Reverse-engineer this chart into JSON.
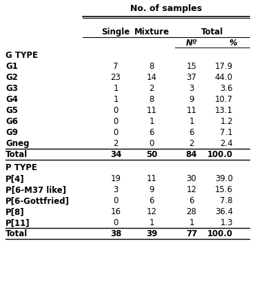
{
  "title": "No. of samples",
  "gtype_label": "G TYPE",
  "ptype_label": "P TYPE",
  "gtype_rows": [
    [
      "G1",
      "7",
      "8",
      "15",
      "17.9"
    ],
    [
      "G2",
      "23",
      "14",
      "37",
      "44.0"
    ],
    [
      "G3",
      "1",
      "2",
      "3",
      "3.6"
    ],
    [
      "G4",
      "1",
      "8",
      "9",
      "10.7"
    ],
    [
      "G5",
      "0",
      "11",
      "11",
      "13.1"
    ],
    [
      "G6",
      "0",
      "1",
      "1",
      "1.2"
    ],
    [
      "G9",
      "0",
      "6",
      "6",
      "7.1"
    ],
    [
      "Gneg",
      "2",
      "0",
      "2",
      "2.4"
    ]
  ],
  "gtype_total": [
    "Total",
    "34",
    "50",
    "84",
    "100.0"
  ],
  "ptype_rows": [
    [
      "P[4]",
      "19",
      "11",
      "30",
      "39.0"
    ],
    [
      "P[6-M37 like]",
      "3",
      "9",
      "12",
      "15.6"
    ],
    [
      "P[6-Gottfried]",
      "0",
      "6",
      "6",
      "7.8"
    ],
    [
      "P[8]",
      "16",
      "12",
      "28",
      "36.4"
    ],
    [
      "P[11]",
      "0",
      "1",
      "1",
      "1.3"
    ]
  ],
  "ptype_total": [
    "Total",
    "38",
    "39",
    "77",
    "100.0"
  ],
  "bg_color": "#ffffff",
  "text_color": "#000000",
  "font_size": 8.5
}
